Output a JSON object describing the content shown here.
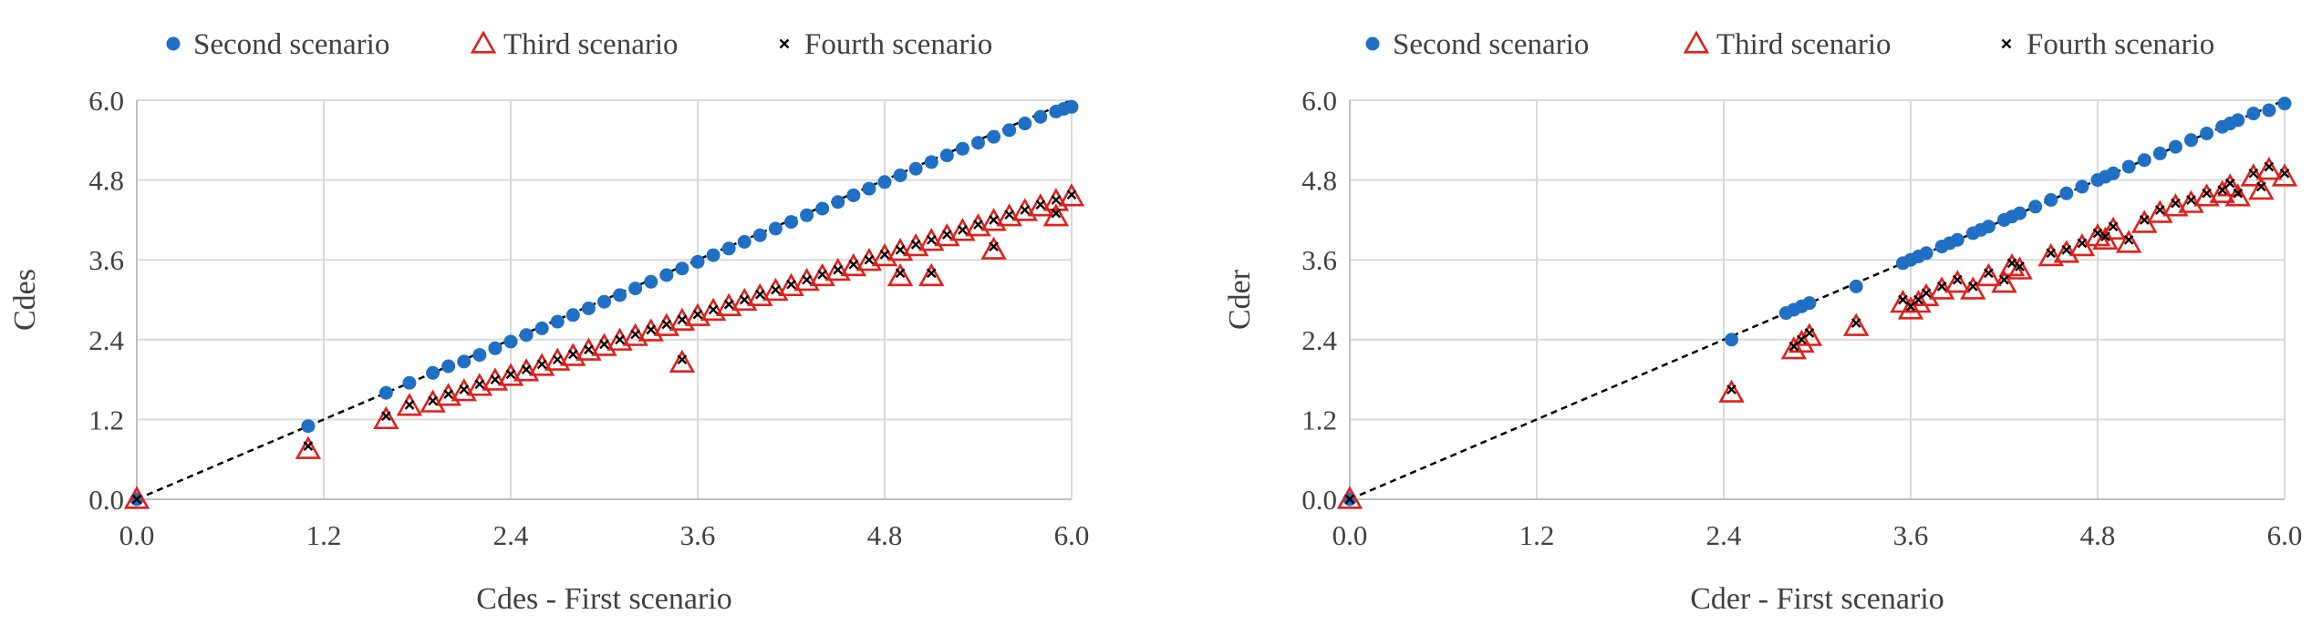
{
  "chart_data": [
    {
      "type": "scatter",
      "title": "",
      "xlabel": "Cdes - First scenario",
      "ylabel": "Cdes",
      "xlim": [
        0,
        6
      ],
      "ylim": [
        0,
        6
      ],
      "xticks": [
        "0.0",
        "1.2",
        "2.4",
        "3.6",
        "4.8",
        "6.0"
      ],
      "yticks": [
        "0.0",
        "1.2",
        "2.4",
        "3.6",
        "4.8",
        "6.0"
      ],
      "grid": true,
      "legend_position": "top",
      "reference_line": {
        "style": "dashed",
        "color": "#000000",
        "from": [
          0,
          0
        ],
        "to": [
          6,
          6
        ]
      },
      "series": [
        {
          "name": "Second scenario",
          "marker": "circle",
          "color": "#1f6fc5",
          "x": [
            0.0,
            1.1,
            1.6,
            1.75,
            1.9,
            2.0,
            2.1,
            2.2,
            2.3,
            2.4,
            2.5,
            2.6,
            2.7,
            2.8,
            2.9,
            3.0,
            3.1,
            3.2,
            3.3,
            3.4,
            3.5,
            3.6,
            3.7,
            3.8,
            3.9,
            4.0,
            4.1,
            4.2,
            4.3,
            4.4,
            4.5,
            4.6,
            4.7,
            4.8,
            4.9,
            5.0,
            5.1,
            5.2,
            5.3,
            5.4,
            5.5,
            5.6,
            5.7,
            5.8,
            5.9,
            5.95,
            6.0
          ],
          "y": [
            0.0,
            1.1,
            1.6,
            1.75,
            1.9,
            2.0,
            2.07,
            2.17,
            2.27,
            2.37,
            2.47,
            2.57,
            2.67,
            2.77,
            2.87,
            2.97,
            3.07,
            3.17,
            3.27,
            3.37,
            3.47,
            3.57,
            3.67,
            3.77,
            3.87,
            3.97,
            4.07,
            4.17,
            4.27,
            4.37,
            4.47,
            4.57,
            4.67,
            4.77,
            4.87,
            4.97,
            5.07,
            5.17,
            5.27,
            5.36,
            5.45,
            5.55,
            5.65,
            5.75,
            5.83,
            5.87,
            5.9
          ]
        },
        {
          "name": "Third scenario",
          "marker": "triangle",
          "color": "#e0201b",
          "x": [
            0.0,
            1.1,
            1.6,
            1.75,
            1.9,
            2.0,
            2.1,
            2.2,
            2.3,
            2.4,
            2.5,
            2.6,
            2.7,
            2.8,
            2.9,
            3.0,
            3.1,
            3.2,
            3.3,
            3.4,
            3.5,
            3.6,
            3.7,
            3.8,
            3.9,
            4.0,
            4.1,
            4.2,
            4.3,
            4.4,
            4.5,
            4.6,
            4.7,
            4.8,
            4.9,
            5.0,
            5.1,
            5.2,
            5.3,
            5.4,
            5.5,
            5.6,
            5.7,
            5.8,
            5.9,
            6.0,
            3.5,
            4.9,
            5.1,
            5.5,
            5.9
          ],
          "y": [
            0.0,
            0.75,
            1.2,
            1.4,
            1.45,
            1.55,
            1.62,
            1.7,
            1.78,
            1.85,
            1.92,
            2.0,
            2.08,
            2.15,
            2.23,
            2.3,
            2.38,
            2.45,
            2.52,
            2.6,
            2.68,
            2.75,
            2.83,
            2.9,
            2.98,
            3.05,
            3.13,
            3.2,
            3.28,
            3.35,
            3.43,
            3.5,
            3.58,
            3.65,
            3.73,
            3.8,
            3.88,
            3.95,
            4.03,
            4.1,
            4.18,
            4.25,
            4.33,
            4.4,
            4.48,
            4.55,
            2.05,
            3.35,
            3.35,
            3.75,
            4.25
          ]
        },
        {
          "name": "Fourth scenario",
          "marker": "x",
          "color": "#000000",
          "x": [
            0.0,
            1.1,
            1.6,
            1.75,
            1.9,
            2.0,
            2.1,
            2.2,
            2.3,
            2.4,
            2.5,
            2.6,
            2.7,
            2.8,
            2.9,
            3.0,
            3.1,
            3.2,
            3.3,
            3.4,
            3.5,
            3.6,
            3.7,
            3.8,
            3.9,
            4.0,
            4.1,
            4.2,
            4.3,
            4.4,
            4.5,
            4.6,
            4.7,
            4.8,
            4.9,
            5.0,
            5.1,
            5.2,
            5.3,
            5.4,
            5.5,
            5.6,
            5.7,
            5.8,
            5.9,
            6.0,
            3.5,
            4.9,
            5.1,
            5.5,
            5.9
          ],
          "y": [
            0.0,
            0.8,
            1.25,
            1.42,
            1.48,
            1.58,
            1.65,
            1.73,
            1.8,
            1.88,
            1.95,
            2.03,
            2.1,
            2.18,
            2.25,
            2.33,
            2.4,
            2.48,
            2.55,
            2.63,
            2.7,
            2.78,
            2.85,
            2.93,
            3.0,
            3.08,
            3.15,
            3.23,
            3.3,
            3.38,
            3.45,
            3.53,
            3.6,
            3.68,
            3.75,
            3.83,
            3.9,
            3.98,
            4.05,
            4.13,
            4.2,
            4.28,
            4.35,
            4.43,
            4.5,
            4.58,
            2.1,
            3.4,
            3.4,
            3.8,
            4.3
          ]
        }
      ]
    },
    {
      "type": "scatter",
      "title": "",
      "xlabel": "Cder - First scenario",
      "ylabel": "Cder",
      "xlim": [
        0,
        6
      ],
      "ylim": [
        0,
        6
      ],
      "xticks": [
        "0.0",
        "1.2",
        "2.4",
        "3.6",
        "4.8",
        "6.0"
      ],
      "yticks": [
        "0.0",
        "1.2",
        "2.4",
        "3.6",
        "4.8",
        "6.0"
      ],
      "grid": true,
      "legend_position": "top",
      "reference_line": {
        "style": "dashed",
        "color": "#000000",
        "from": [
          0,
          0
        ],
        "to": [
          6,
          6
        ]
      },
      "series": [
        {
          "name": "Second scenario",
          "marker": "circle",
          "color": "#1f6fc5",
          "x": [
            0.0,
            2.45,
            2.8,
            2.85,
            2.9,
            2.95,
            3.25,
            3.55,
            3.6,
            3.65,
            3.7,
            3.8,
            3.85,
            3.9,
            4.0,
            4.05,
            4.1,
            4.2,
            4.25,
            4.3,
            4.4,
            4.5,
            4.6,
            4.7,
            4.8,
            4.85,
            4.9,
            5.0,
            5.1,
            5.2,
            5.3,
            5.4,
            5.5,
            5.6,
            5.65,
            5.7,
            5.8,
            5.9,
            6.0
          ],
          "y": [
            0.0,
            2.4,
            2.8,
            2.85,
            2.9,
            2.95,
            3.2,
            3.55,
            3.6,
            3.65,
            3.7,
            3.8,
            3.85,
            3.9,
            4.0,
            4.05,
            4.1,
            4.2,
            4.25,
            4.3,
            4.4,
            4.5,
            4.6,
            4.7,
            4.8,
            4.85,
            4.9,
            5.0,
            5.1,
            5.2,
            5.3,
            5.4,
            5.5,
            5.6,
            5.65,
            5.7,
            5.8,
            5.85,
            5.95
          ]
        },
        {
          "name": "Third scenario",
          "marker": "triangle",
          "color": "#e0201b",
          "x": [
            0.0,
            2.45,
            2.85,
            2.9,
            2.95,
            3.25,
            3.55,
            3.6,
            3.65,
            3.7,
            3.8,
            3.9,
            4.0,
            4.1,
            4.2,
            4.25,
            4.3,
            4.5,
            4.6,
            4.7,
            4.8,
            4.85,
            4.9,
            5.0,
            5.1,
            5.2,
            5.3,
            5.4,
            5.5,
            5.6,
            5.65,
            5.7,
            5.8,
            5.85,
            5.9,
            6.0
          ],
          "y": [
            0.0,
            1.6,
            2.25,
            2.35,
            2.45,
            2.6,
            2.95,
            2.85,
            2.95,
            3.05,
            3.15,
            3.25,
            3.15,
            3.35,
            3.25,
            3.5,
            3.45,
            3.65,
            3.7,
            3.8,
            3.95,
            3.9,
            4.05,
            3.85,
            4.15,
            4.3,
            4.4,
            4.45,
            4.55,
            4.6,
            4.7,
            4.55,
            4.85,
            4.65,
            4.95,
            4.85
          ]
        },
        {
          "name": "Fourth scenario",
          "marker": "x",
          "color": "#000000",
          "x": [
            0.0,
            2.45,
            2.85,
            2.9,
            2.95,
            3.25,
            3.55,
            3.6,
            3.65,
            3.7,
            3.8,
            3.9,
            4.0,
            4.1,
            4.2,
            4.25,
            4.3,
            4.5,
            4.6,
            4.7,
            4.8,
            4.85,
            4.9,
            5.0,
            5.1,
            5.2,
            5.3,
            5.4,
            5.5,
            5.6,
            5.65,
            5.7,
            5.8,
            5.85,
            5.9,
            6.0
          ],
          "y": [
            0.0,
            1.65,
            2.3,
            2.4,
            2.5,
            2.65,
            3.0,
            2.9,
            3.0,
            3.1,
            3.2,
            3.3,
            3.2,
            3.4,
            3.3,
            3.55,
            3.5,
            3.7,
            3.75,
            3.85,
            4.0,
            3.95,
            4.1,
            3.9,
            4.2,
            4.35,
            4.45,
            4.5,
            4.6,
            4.65,
            4.75,
            4.6,
            4.9,
            4.7,
            5.0,
            4.9
          ]
        }
      ]
    }
  ]
}
